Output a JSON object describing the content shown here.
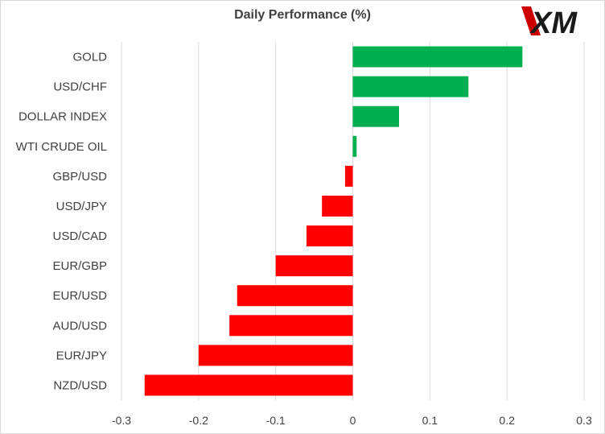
{
  "logo": {
    "text": "XM",
    "accent": "#cc0000"
  },
  "chart_data": {
    "type": "bar",
    "orientation": "horizontal",
    "title": "Daily Performance (%)",
    "categories": [
      "GOLD",
      "USD/CHF",
      "DOLLAR INDEX",
      "WTI CRUDE OIL",
      "GBP/USD",
      "USD/JPY",
      "USD/CAD",
      "EUR/GBP",
      "EUR/USD",
      "AUD/USD",
      "EUR/JPY",
      "NZD/USD"
    ],
    "values": [
      0.22,
      0.15,
      0.06,
      0.005,
      -0.01,
      -0.04,
      -0.06,
      -0.1,
      -0.15,
      -0.16,
      -0.2,
      -0.27
    ],
    "xlim": [
      -0.3,
      0.3
    ],
    "xticks": [
      -0.3,
      -0.2,
      -0.1,
      0,
      0.1,
      0.2,
      0.3
    ],
    "xtick_labels": [
      "-0.3",
      "-0.2",
      "-0.1",
      "0",
      "0.1",
      "0.2",
      "0.3"
    ],
    "grid": true,
    "colors": {
      "positive": "#00b050",
      "negative": "#ff0000",
      "grid": "#d9d9d9"
    }
  }
}
